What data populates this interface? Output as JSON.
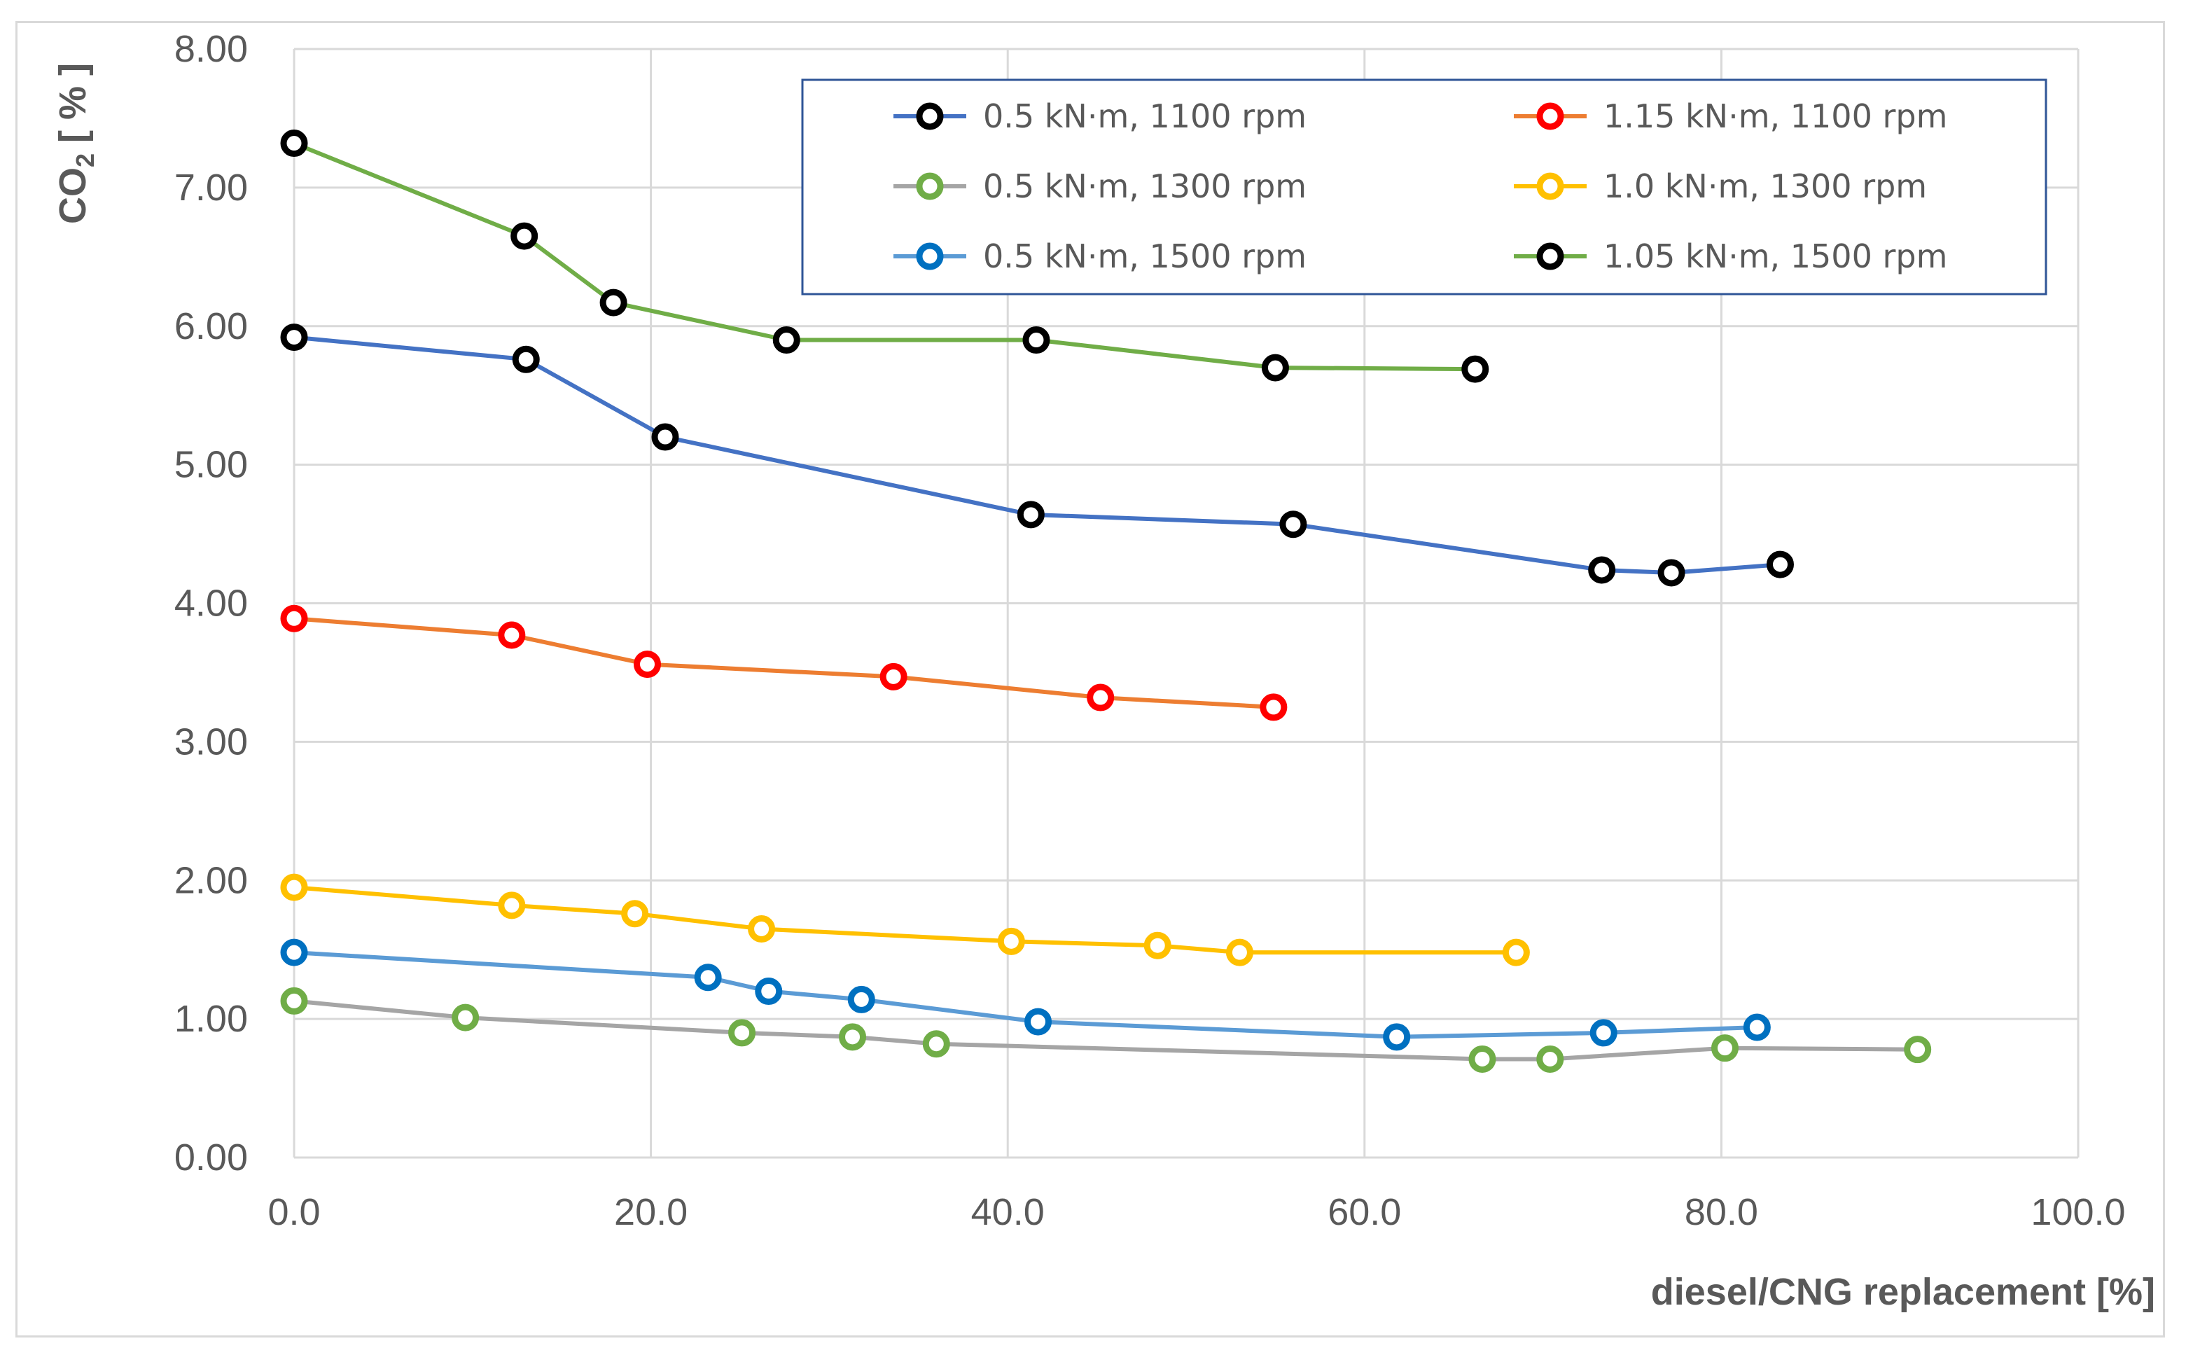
{
  "chart_data": {
    "type": "line",
    "title": "",
    "xlabel": "diesel/CNG replacement [%]",
    "ylabel_main": "CO",
    "ylabel_sub": "2",
    "ylabel_tail": " [ % ]",
    "xlim": [
      0,
      100
    ],
    "ylim": [
      0,
      8
    ],
    "x_ticks": [
      0,
      20,
      40,
      60,
      80,
      100
    ],
    "x_tick_labels": [
      "0.0",
      "20.0",
      "40.0",
      "60.0",
      "80.0",
      "100.0"
    ],
    "y_ticks": [
      0,
      1,
      2,
      3,
      4,
      5,
      6,
      7,
      8
    ],
    "y_tick_labels": [
      "0.00",
      "1.00",
      "2.00",
      "3.00",
      "4.00",
      "5.00",
      "6.00",
      "7.00",
      "8.00"
    ],
    "grid": true,
    "legend_position": "top-right",
    "series": [
      {
        "name": "0.5 kN·m, 1100 rpm",
        "line_color": "#4472c4",
        "marker_color": "#000000",
        "x": [
          0.0,
          13.0,
          20.8,
          41.3,
          56.0,
          73.3,
          77.2,
          83.3
        ],
        "y": [
          5.92,
          5.76,
          5.2,
          4.64,
          4.57,
          4.24,
          4.22,
          4.28
        ]
      },
      {
        "name": "1.15 kN·m, 1100 rpm",
        "line_color": "#ed7d31",
        "marker_color": "#ff0000",
        "x": [
          0.0,
          12.2,
          19.8,
          33.6,
          45.2,
          54.9
        ],
        "y": [
          3.89,
          3.77,
          3.56,
          3.47,
          3.32,
          3.25
        ]
      },
      {
        "name": "0.5 kN·m, 1300 rpm",
        "line_color": "#a5a5a5",
        "marker_color": "#70ad47",
        "x": [
          0.0,
          9.6,
          25.1,
          31.3,
          36.0,
          66.6,
          70.4,
          80.2,
          91.0
        ],
        "y": [
          1.13,
          1.01,
          0.9,
          0.87,
          0.82,
          0.71,
          0.71,
          0.79,
          0.78
        ]
      },
      {
        "name": "1.0 kN·m, 1300 rpm",
        "line_color": "#ffc000",
        "marker_color": "#ffc000",
        "x": [
          0.0,
          12.2,
          19.1,
          26.2,
          40.2,
          48.4,
          53.0,
          68.5
        ],
        "y": [
          1.95,
          1.82,
          1.76,
          1.65,
          1.56,
          1.53,
          1.48,
          1.48
        ]
      },
      {
        "name": "0.5 kN·m, 1500 rpm",
        "line_color": "#5b9bd5",
        "marker_color": "#0070c0",
        "x": [
          0.0,
          23.2,
          26.6,
          31.8,
          41.7,
          61.8,
          73.4,
          82.0
        ],
        "y": [
          1.48,
          1.3,
          1.2,
          1.14,
          0.98,
          0.87,
          0.9,
          0.94
        ]
      },
      {
        "name": "1.05 kN·m, 1500 rpm",
        "line_color": "#70ad47",
        "marker_color": "#000000",
        "x": [
          0.0,
          12.9,
          17.9,
          27.6,
          41.6,
          55.0,
          66.2
        ],
        "y": [
          7.32,
          6.65,
          6.17,
          5.9,
          5.9,
          5.7,
          5.69
        ]
      }
    ]
  }
}
